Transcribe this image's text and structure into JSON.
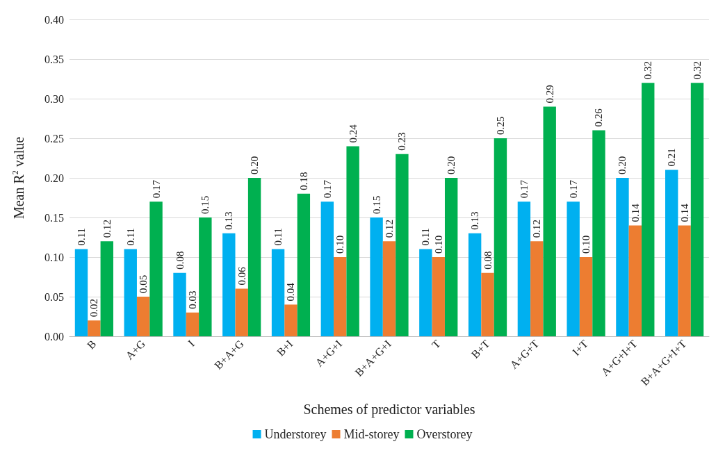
{
  "chart_data": {
    "type": "bar",
    "xlabel": "Schemes of predictor variables",
    "ylabel": "Mean R$^{2}$ value",
    "categories": [
      "B",
      "A+G",
      "I",
      "B+A+G",
      "B+I",
      "A+G+I",
      "B+A+G+I",
      "T",
      "B+T",
      "A+G+T",
      "I+T",
      "A+G+I+T",
      "B+A+G+I+T"
    ],
    "series": [
      {
        "name": "Understorey",
        "color": "#00b0f0",
        "values": [
          0.11,
          0.11,
          0.08,
          0.13,
          0.11,
          0.17,
          0.15,
          0.11,
          0.13,
          0.17,
          0.17,
          0.2,
          0.21
        ],
        "value_labels": [
          "0.11",
          "0.11",
          "0.08",
          "0.13",
          "0.11",
          "0.17",
          "0.15",
          "0.11",
          "0.13",
          "0.17",
          "0.17",
          "0.20",
          "0.21"
        ]
      },
      {
        "name": "Mid-storey",
        "color": "#ed7d31",
        "values": [
          0.02,
          0.05,
          0.03,
          0.06,
          0.04,
          0.1,
          0.12,
          0.1,
          0.08,
          0.12,
          0.1,
          0.14,
          0.14
        ],
        "value_labels": [
          "0.02",
          "0.05",
          "0.03",
          "0.06",
          "0.04",
          "0.10",
          "0.12",
          "0.10",
          "0.08",
          "0.12",
          "0.10",
          "0.14",
          "0.14"
        ]
      },
      {
        "name": "Overstorey",
        "color": "#00b050",
        "values": [
          0.12,
          0.17,
          0.15,
          0.2,
          0.18,
          0.24,
          0.23,
          0.2,
          0.25,
          0.29,
          0.26,
          0.32,
          0.32
        ],
        "value_labels": [
          "0.12",
          "0.17",
          "0.15",
          "0.20",
          "0.18",
          "0.24",
          "0.23",
          "0.20",
          "0.25",
          "0.29",
          "0.26",
          "0.32",
          "0.32"
        ]
      }
    ],
    "ylim": [
      0,
      0.4
    ],
    "yticks": [
      {
        "value": 0,
        "label": "0.00"
      },
      {
        "value": 0.05,
        "label": "0.05"
      },
      {
        "value": 0.1,
        "label": "0.10"
      },
      {
        "value": 0.15,
        "label": "0.15"
      },
      {
        "value": 0.2,
        "label": "0.20"
      },
      {
        "value": 0.25,
        "label": "0.25"
      },
      {
        "value": 0.3,
        "label": "0.30"
      },
      {
        "value": 0.35,
        "label": "0.35"
      },
      {
        "value": 0.4,
        "label": "0.40"
      }
    ],
    "grid": "y",
    "legend": "bottom"
  }
}
